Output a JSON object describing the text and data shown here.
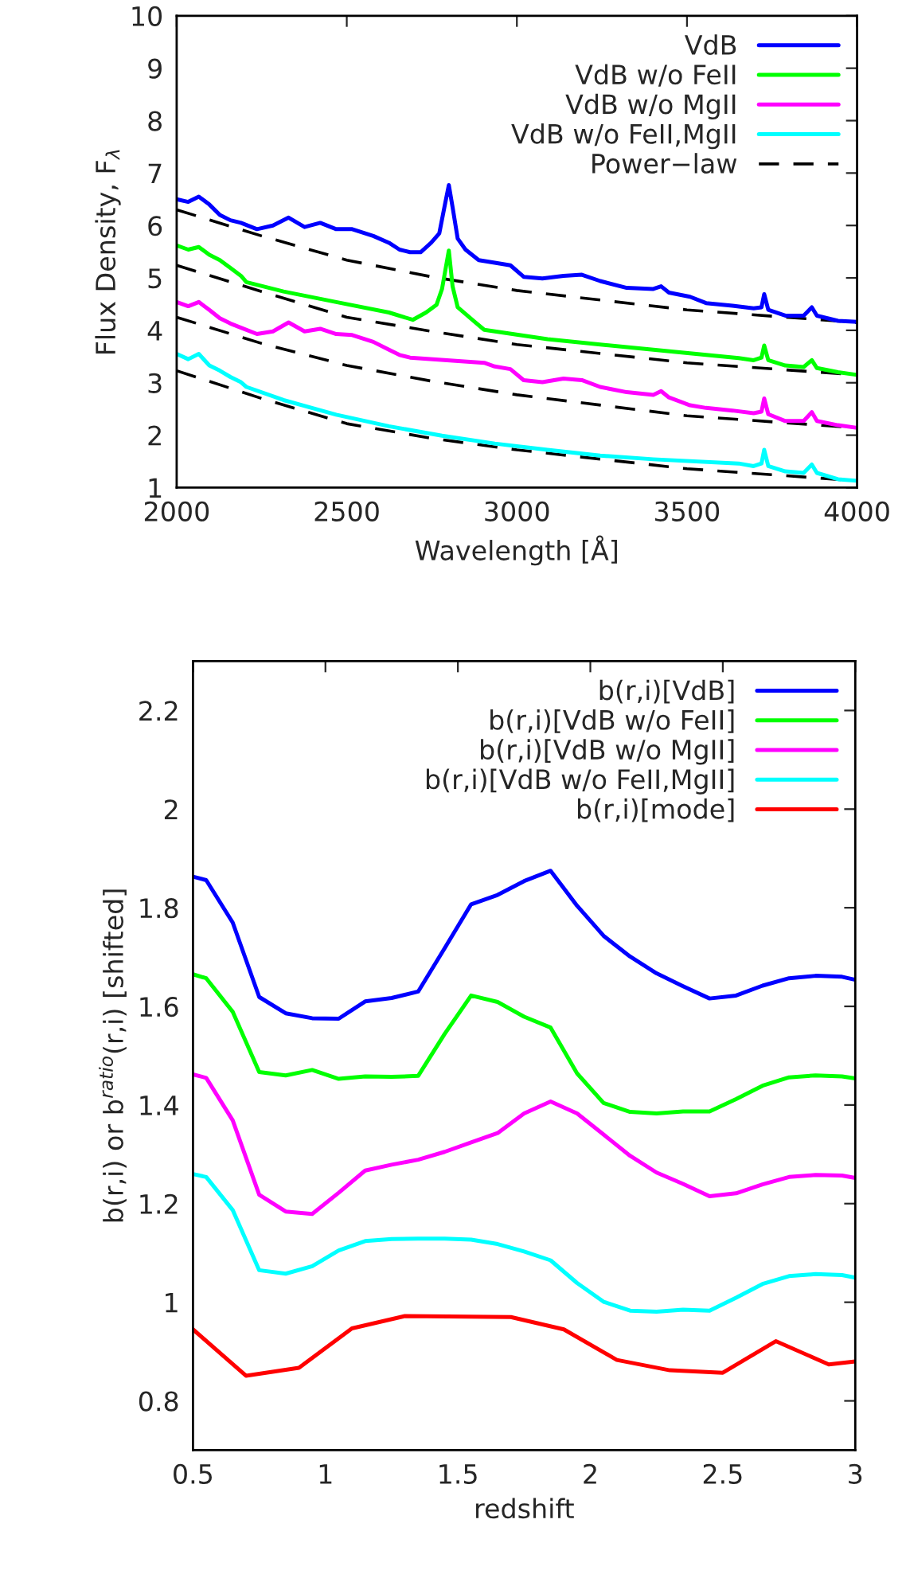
{
  "chart_data": [
    {
      "type": "line",
      "xlabel": "Wavelength [Å]",
      "ylabel": "Flux Density, F$_{λ}$",
      "xlim": [
        2000,
        4000
      ],
      "ylim": [
        1,
        10
      ],
      "xticks": [
        2000,
        2500,
        3000,
        3500,
        4000
      ],
      "yticks": [
        1,
        2,
        3,
        4,
        5,
        6,
        7,
        8,
        9,
        10
      ],
      "grid": false,
      "legend": "top right",
      "series": [
        {
          "name": "VdB",
          "color": "#0000ff",
          "line_style": "solid",
          "x": [
            2000,
            2034,
            2065,
            2096,
            2127,
            2158,
            2189,
            2236,
            2283,
            2329,
            2376,
            2422,
            2469,
            2516,
            2578,
            2624,
            2655,
            2686,
            2717,
            2748,
            2772,
            2787,
            2800,
            2811,
            2826,
            2849,
            2888,
            2935,
            2981,
            3020,
            3075,
            3137,
            3191,
            3245,
            3323,
            3401,
            3424,
            3447,
            3509,
            3556,
            3634,
            3696,
            3719,
            3727,
            3739,
            3789,
            3843,
            3867,
            3882,
            3944,
            4000
          ],
          "values": [
            6.5,
            6.45,
            6.55,
            6.4,
            6.2,
            6.1,
            6.05,
            5.93,
            6.0,
            6.15,
            5.97,
            6.05,
            5.93,
            5.93,
            5.8,
            5.67,
            5.54,
            5.49,
            5.49,
            5.67,
            5.85,
            6.35,
            6.77,
            6.35,
            5.75,
            5.54,
            5.34,
            5.29,
            5.24,
            5.02,
            4.99,
            5.04,
            5.06,
            4.94,
            4.81,
            4.79,
            4.84,
            4.72,
            4.64,
            4.52,
            4.47,
            4.42,
            4.44,
            4.69,
            4.39,
            4.28,
            4.28,
            4.44,
            4.28,
            4.18,
            4.16
          ]
        },
        {
          "name": "VdB w/o FeII",
          "color": "#00ff00",
          "line_style": "solid",
          "x": [
            2000,
            2034,
            2065,
            2096,
            2127,
            2158,
            2189,
            2205,
            2314,
            2469,
            2624,
            2694,
            2733,
            2764,
            2780,
            2800,
            2811,
            2826,
            2873,
            2904,
            3090,
            3401,
            3652,
            3696,
            3719,
            3727,
            3739,
            3789,
            3843,
            3867,
            3882,
            3944,
            4000
          ],
          "values": [
            5.62,
            5.54,
            5.59,
            5.44,
            5.34,
            5.19,
            5.04,
            4.92,
            4.74,
            4.54,
            4.34,
            4.2,
            4.34,
            4.49,
            4.79,
            5.52,
            4.84,
            4.44,
            4.18,
            4.01,
            3.83,
            3.63,
            3.47,
            3.43,
            3.48,
            3.71,
            3.43,
            3.33,
            3.3,
            3.43,
            3.28,
            3.2,
            3.15
          ]
        },
        {
          "name": "VdB w/o MgII",
          "color": "#ff00ff",
          "line_style": "solid",
          "x": [
            2000,
            2034,
            2065,
            2096,
            2127,
            2158,
            2189,
            2236,
            2283,
            2329,
            2376,
            2422,
            2469,
            2516,
            2578,
            2624,
            2655,
            2686,
            2904,
            2935,
            2981,
            3020,
            3075,
            3137,
            3191,
            3245,
            3323,
            3401,
            3424,
            3447,
            3509,
            3556,
            3634,
            3696,
            3719,
            3727,
            3739,
            3789,
            3843,
            3867,
            3882,
            3944,
            4000
          ],
          "values": [
            4.54,
            4.46,
            4.54,
            4.39,
            4.23,
            4.13,
            4.05,
            3.93,
            3.98,
            4.15,
            3.98,
            4.03,
            3.93,
            3.91,
            3.78,
            3.63,
            3.53,
            3.48,
            3.38,
            3.31,
            3.26,
            3.05,
            3.01,
            3.08,
            3.05,
            2.92,
            2.82,
            2.77,
            2.84,
            2.72,
            2.57,
            2.52,
            2.47,
            2.42,
            2.45,
            2.7,
            2.4,
            2.27,
            2.27,
            2.44,
            2.27,
            2.19,
            2.14
          ]
        },
        {
          "name": "VdB w/o FeII,MgII",
          "color": "#00ffff",
          "line_style": "solid",
          "x": [
            2000,
            2034,
            2065,
            2096,
            2127,
            2158,
            2189,
            2205,
            2314,
            2469,
            2624,
            2780,
            2935,
            3090,
            3245,
            3401,
            3652,
            3696,
            3719,
            3727,
            3739,
            3789,
            3843,
            3867,
            3882,
            3944,
            4000
          ],
          "values": [
            3.55,
            3.45,
            3.55,
            3.33,
            3.23,
            3.11,
            3.01,
            2.92,
            2.67,
            2.39,
            2.17,
            1.99,
            1.84,
            1.72,
            1.61,
            1.54,
            1.46,
            1.41,
            1.46,
            1.72,
            1.41,
            1.31,
            1.28,
            1.44,
            1.28,
            1.16,
            1.13
          ]
        },
        {
          "name": "Power−law",
          "color": "#000000",
          "line_style": "dashed",
          "x": [
            2000,
            2250,
            2500,
            2750,
            3000,
            3500,
            4000
          ],
          "values": [
            6.3,
            5.8,
            5.34,
            5.02,
            4.76,
            4.39,
            4.15
          ]
        },
        {
          "color": "#000000",
          "line_style": "dashed",
          "x": [
            2000,
            2250,
            2500,
            2750,
            3000,
            3500,
            4000
          ],
          "values": [
            5.24,
            4.74,
            4.25,
            3.98,
            3.73,
            3.38,
            3.15
          ]
        },
        {
          "color": "#000000",
          "line_style": "dashed",
          "x": [
            2000,
            2250,
            2500,
            2750,
            3000,
            3500,
            4000
          ],
          "values": [
            4.25,
            3.75,
            3.33,
            3.03,
            2.77,
            2.37,
            2.14
          ]
        },
        {
          "color": "#000000",
          "line_style": "dashed",
          "x": [
            2000,
            2250,
            2500,
            2750,
            3000,
            3500,
            4000
          ],
          "values": [
            3.23,
            2.7,
            2.22,
            1.94,
            1.72,
            1.36,
            1.13
          ]
        }
      ]
    },
    {
      "type": "line",
      "xlabel": "redshift",
      "ylabel": "b(r,i) or b$^{ratio}$(r,i) [shifted]",
      "xlim": [
        0.5,
        3
      ],
      "ylim": [
        0.7,
        2.3
      ],
      "xticks": [
        0.5,
        1,
        1.5,
        2,
        2.5,
        3
      ],
      "yticks": [
        0.8,
        1,
        1.2,
        1.4,
        1.6,
        1.8,
        2,
        2.2
      ],
      "grid": false,
      "legend": "top right",
      "x": [
        0.5,
        0.55,
        0.65,
        0.75,
        0.85,
        0.95,
        1.05,
        1.15,
        1.25,
        1.35,
        1.45,
        1.55,
        1.65,
        1.75,
        1.85,
        1.95,
        2.05,
        2.15,
        2.25,
        2.35,
        2.45,
        2.55,
        2.65,
        2.75,
        2.85,
        2.95,
        3.0
      ],
      "series": [
        {
          "name": "b(r,i)[VdB]",
          "color": "#0000ff",
          "line_style": "solid",
          "values": [
            1.863,
            1.856,
            1.77,
            1.619,
            1.586,
            1.576,
            1.575,
            1.61,
            1.617,
            1.63,
            1.718,
            1.807,
            1.826,
            1.854,
            1.875,
            1.804,
            1.743,
            1.701,
            1.667,
            1.641,
            1.616,
            1.622,
            1.642,
            1.657,
            1.662,
            1.66,
            1.654
          ]
        },
        {
          "name": "b(r,i)[VdB w/o FeII]",
          "color": "#00ff00",
          "line_style": "solid",
          "values": [
            1.665,
            1.657,
            1.589,
            1.467,
            1.46,
            1.471,
            1.453,
            1.458,
            1.457,
            1.459,
            1.544,
            1.622,
            1.609,
            1.579,
            1.557,
            1.464,
            1.404,
            1.386,
            1.383,
            1.387,
            1.387,
            1.412,
            1.439,
            1.456,
            1.46,
            1.458,
            1.454
          ]
        },
        {
          "name": "b(r,i)[VdB w/o MgII]",
          "color": "#ff00ff",
          "line_style": "solid",
          "values": [
            1.462,
            1.455,
            1.369,
            1.218,
            1.184,
            1.179,
            1.222,
            1.267,
            1.279,
            1.289,
            1.305,
            1.324,
            1.343,
            1.383,
            1.407,
            1.383,
            1.34,
            1.297,
            1.263,
            1.24,
            1.215,
            1.221,
            1.239,
            1.254,
            1.258,
            1.257,
            1.252
          ]
        },
        {
          "name": "b(r,i)[VdB w/o FeII,MgII]",
          "color": "#00ffff",
          "line_style": "solid",
          "values": [
            1.26,
            1.254,
            1.187,
            1.065,
            1.058,
            1.073,
            1.105,
            1.124,
            1.128,
            1.129,
            1.129,
            1.127,
            1.118,
            1.103,
            1.085,
            1.039,
            1.001,
            0.983,
            0.981,
            0.985,
            0.983,
            1.009,
            1.037,
            1.053,
            1.057,
            1.055,
            1.05
          ]
        },
        {
          "name": "b(r,i)[mode]",
          "color": "#ff0000",
          "line_style": "solid",
          "x": [
            0.5,
            0.7,
            0.9,
            1.1,
            1.3,
            1.7,
            1.9,
            2.1,
            2.3,
            2.5,
            2.7,
            2.9,
            3.0
          ],
          "values": [
            0.945,
            0.851,
            0.867,
            0.947,
            0.972,
            0.97,
            0.945,
            0.883,
            0.862,
            0.857,
            0.921,
            0.874,
            0.88
          ]
        }
      ]
    }
  ]
}
